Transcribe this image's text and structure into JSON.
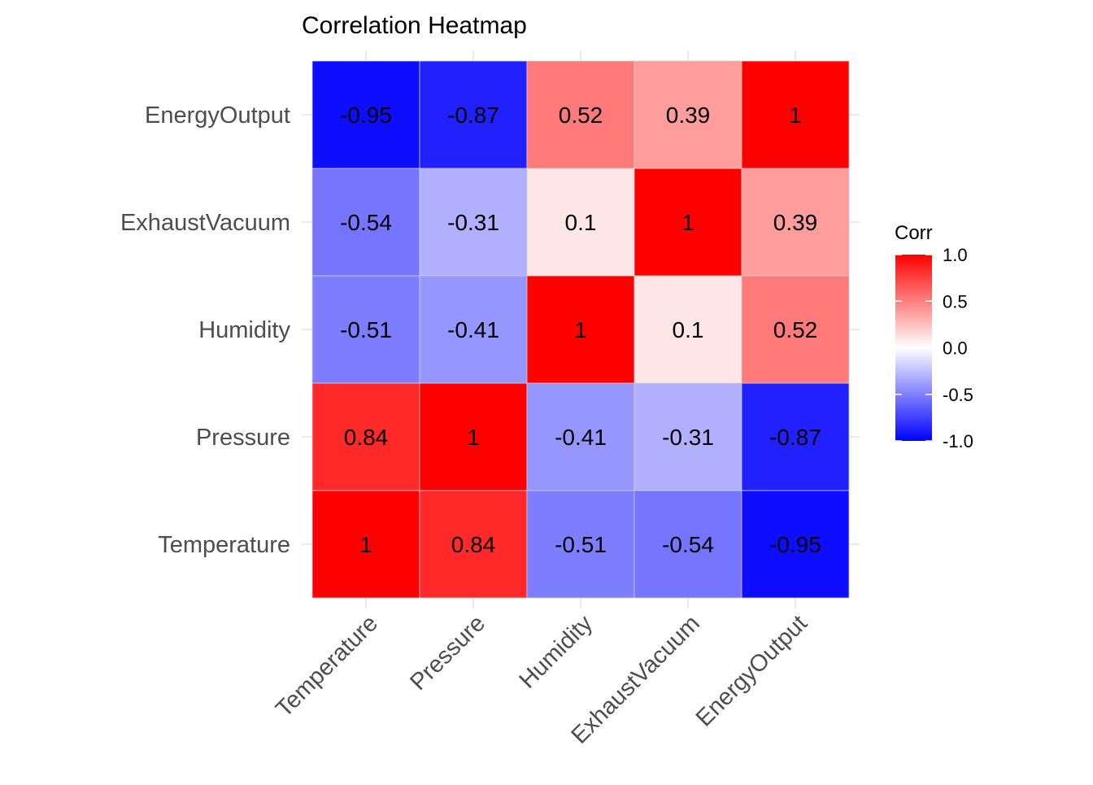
{
  "chart_data": {
    "type": "heatmap",
    "title": "Correlation Heatmap",
    "xlabel": "",
    "ylabel": "",
    "x_categories": [
      "Temperature",
      "Pressure",
      "Humidity",
      "ExhaustVacuum",
      "EnergyOutput"
    ],
    "y_categories": [
      "Temperature",
      "Pressure",
      "Humidity",
      "ExhaustVacuum",
      "EnergyOutput"
    ],
    "values": [
      [
        1,
        0.84,
        -0.51,
        -0.54,
        -0.95
      ],
      [
        0.84,
        1,
        -0.41,
        -0.31,
        -0.87
      ],
      [
        -0.51,
        -0.41,
        1,
        0.1,
        0.52
      ],
      [
        -0.54,
        -0.31,
        0.1,
        1,
        0.39
      ],
      [
        -0.95,
        -0.87,
        0.52,
        0.39,
        1
      ]
    ],
    "legend": {
      "title": "Corr",
      "min": -1.0,
      "max": 1.0,
      "ticks": [
        "1.0",
        "0.5",
        "0.0",
        "-0.5",
        "-1.0"
      ],
      "placement": "right",
      "low_color": "#0000ff",
      "mid_color": "#ffffff",
      "high_color": "#ff0000"
    },
    "grid": true,
    "x_tick_rotation_deg": 45
  }
}
